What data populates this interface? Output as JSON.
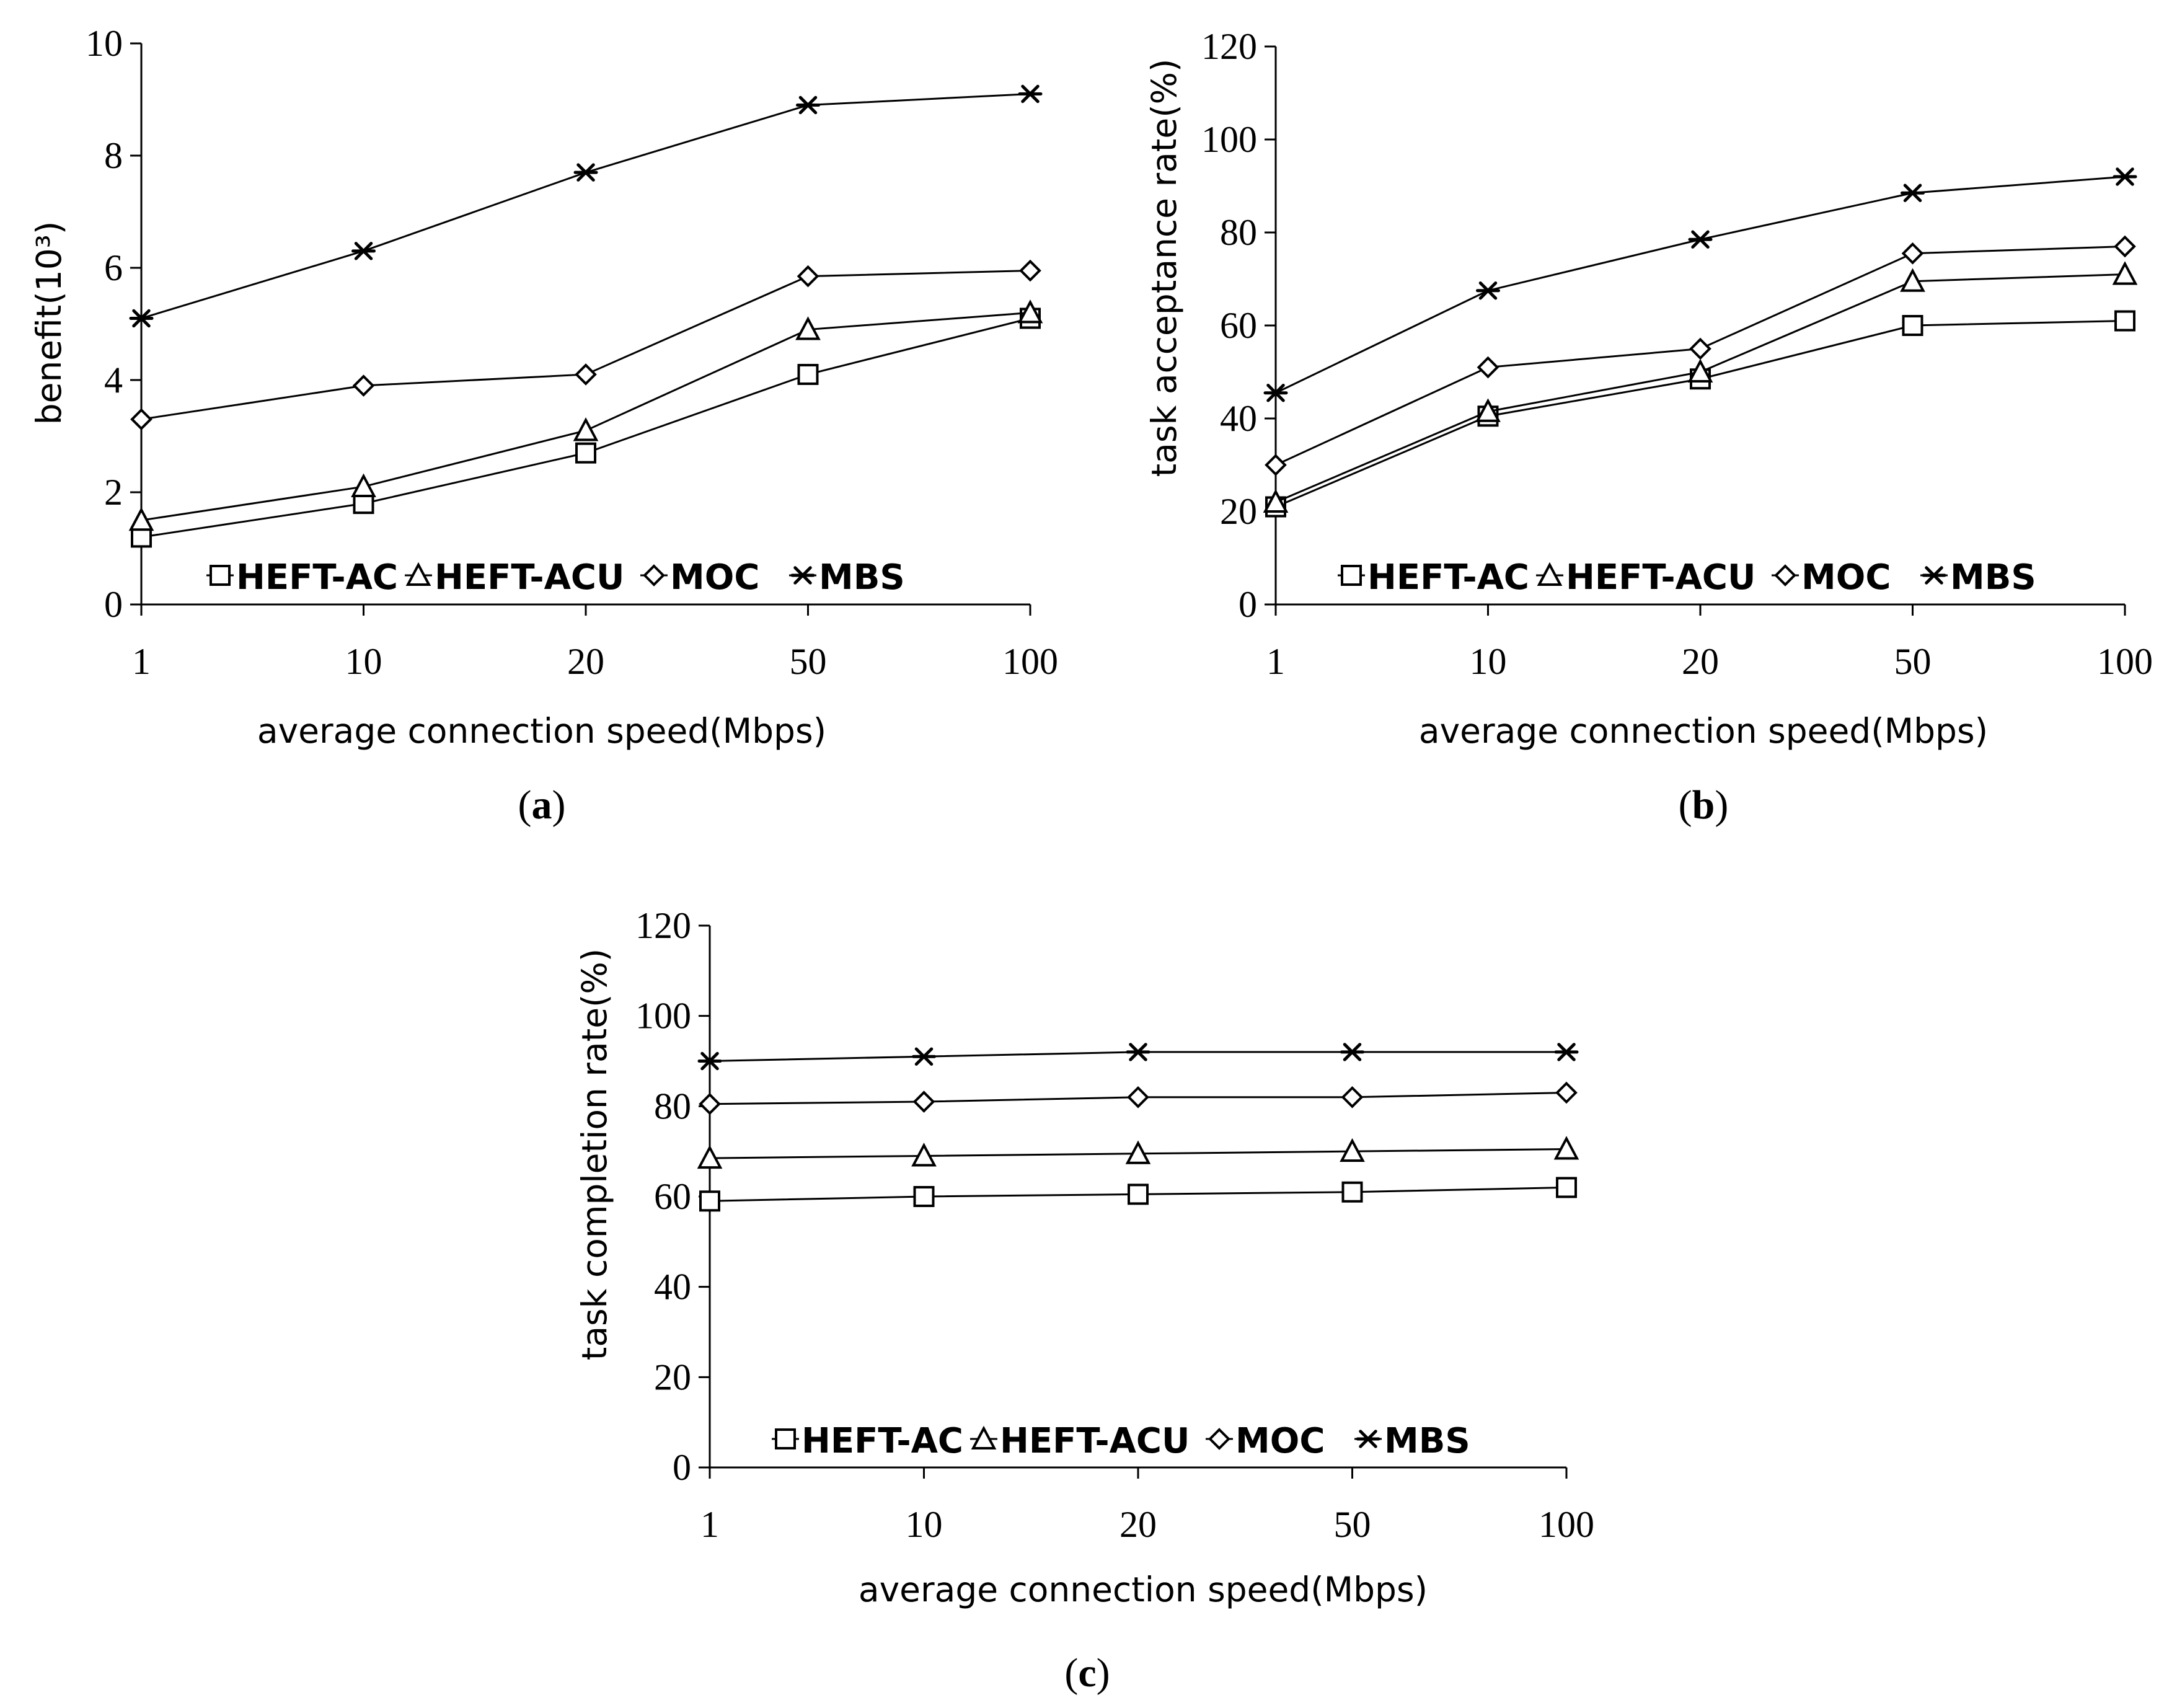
{
  "chart_data": [
    {
      "panel_label_open": "(",
      "panel_label_letter": "a",
      "panel_label_close": ")",
      "type": "line",
      "title": "",
      "xlabel": "average connection speed(Mbps)",
      "ylabel": "benefit(10³)",
      "categories": [
        "1",
        "10",
        "20",
        "50",
        "100"
      ],
      "ylim": [
        0,
        10
      ],
      "yticks": [
        "0",
        "2",
        "4",
        "6",
        "8",
        "10"
      ],
      "ytick_values": [
        0,
        2,
        4,
        6,
        8,
        10
      ],
      "legend_position": "bottom",
      "series": [
        {
          "name": "HEFT-AC",
          "marker": "square",
          "values": [
            1.2,
            1.8,
            2.7,
            4.1,
            5.1
          ]
        },
        {
          "name": "HEFT-ACU",
          "marker": "triangle",
          "values": [
            1.5,
            2.1,
            3.1,
            4.9,
            5.2
          ]
        },
        {
          "name": "MOC",
          "marker": "diamond",
          "values": [
            3.3,
            3.9,
            4.1,
            5.85,
            5.95
          ]
        },
        {
          "name": "MBS",
          "marker": "star",
          "values": [
            5.1,
            6.3,
            7.7,
            8.9,
            9.1
          ]
        }
      ]
    },
    {
      "panel_label_open": "(",
      "panel_label_letter": "b",
      "panel_label_close": ")",
      "type": "line",
      "title": "",
      "xlabel": "average connection speed(Mbps)",
      "ylabel": "task acceptance rate(%)",
      "categories": [
        "1",
        "10",
        "20",
        "50",
        "100"
      ],
      "ylim": [
        0,
        120
      ],
      "yticks": [
        "0",
        "20",
        "40",
        "60",
        "80",
        "100",
        "120"
      ],
      "ytick_values": [
        0,
        20,
        40,
        60,
        80,
        100,
        120
      ],
      "legend_position": "bottom",
      "series": [
        {
          "name": "HEFT-AC",
          "marker": "square",
          "values": [
            21,
            40.5,
            48.5,
            60,
            61
          ]
        },
        {
          "name": "HEFT-ACU",
          "marker": "triangle",
          "values": [
            22,
            41.5,
            50,
            69.5,
            71
          ]
        },
        {
          "name": "MOC",
          "marker": "diamond",
          "values": [
            30,
            51,
            55,
            75.5,
            77
          ]
        },
        {
          "name": "MBS",
          "marker": "star",
          "values": [
            45.5,
            67.5,
            78.5,
            88.5,
            92
          ]
        }
      ]
    },
    {
      "panel_label_open": "(",
      "panel_label_letter": "c",
      "panel_label_close": ")",
      "type": "line",
      "title": "",
      "xlabel": "average connection speed(Mbps)",
      "ylabel": "task completion rate(%)",
      "categories": [
        "1",
        "10",
        "20",
        "50",
        "100"
      ],
      "ylim": [
        0,
        120
      ],
      "yticks": [
        "0",
        "20",
        "40",
        "60",
        "80",
        "100",
        "120"
      ],
      "ytick_values": [
        0,
        20,
        40,
        60,
        80,
        100,
        120
      ],
      "legend_position": "bottom",
      "series": [
        {
          "name": "HEFT-AC",
          "marker": "square",
          "values": [
            59,
            60,
            60.5,
            61,
            62
          ]
        },
        {
          "name": "HEFT-ACU",
          "marker": "triangle",
          "values": [
            68.5,
            69,
            69.5,
            70,
            70.5
          ]
        },
        {
          "name": "MOC",
          "marker": "diamond",
          "values": [
            80.5,
            81,
            82,
            82,
            83
          ]
        },
        {
          "name": "MBS",
          "marker": "star",
          "values": [
            90,
            91,
            92,
            92,
            92
          ]
        }
      ]
    }
  ]
}
